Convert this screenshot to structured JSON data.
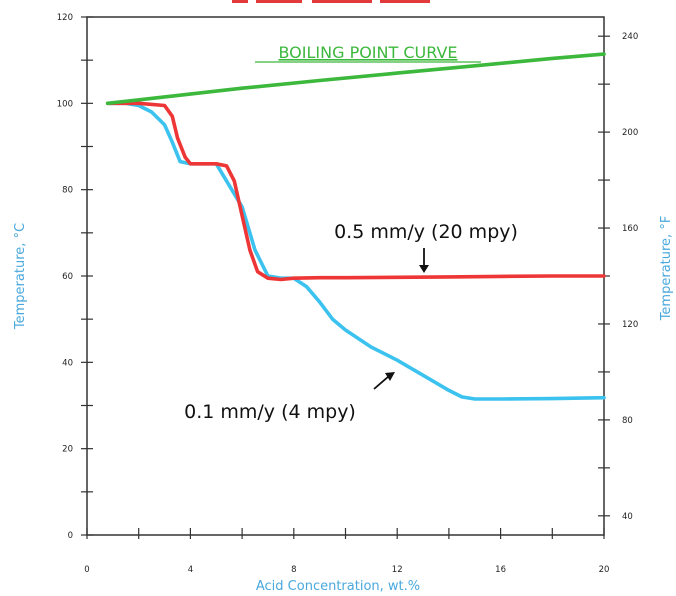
{
  "chart_data": {
    "type": "line",
    "title": "",
    "xlabel": "Acid Concentration, wt.%",
    "ylabel": "Temperature, °C",
    "ylabel_right": "Temperature, °F",
    "xlim": [
      0,
      20
    ],
    "ylim": [
      0,
      120
    ],
    "ylim_right": [
      32,
      248
    ],
    "x_ticks": [
      0,
      4,
      8,
      12,
      16,
      20
    ],
    "y_ticks": [
      0,
      20,
      40,
      60,
      80,
      100,
      120
    ],
    "y_ticks_right": [
      40,
      80,
      120,
      160,
      200,
      240
    ],
    "grid": false,
    "legend": "none",
    "colors": {
      "boiling": "#3cb83c",
      "red": "#ee3636",
      "blue": "#3cc2ee",
      "left_axis_label": "#4aa8dc",
      "right_axis_label": "#4aa8dc",
      "x_axis_label": "#4aa8dc",
      "title_partial": "#e23a3a"
    },
    "series": [
      {
        "key": "boiling",
        "x": [
          0.8,
          3,
          6,
          9,
          12,
          15,
          18,
          20
        ],
        "y": [
          100,
          101.5,
          103.5,
          105.3,
          107,
          108.7,
          110.4,
          111.4
        ]
      },
      {
        "key": "red",
        "x": [
          0.8,
          2,
          3,
          3.3,
          3.5,
          3.8,
          4,
          4.5,
          5,
          5.4,
          5.7,
          6,
          6.3,
          6.6,
          7,
          7.5,
          8,
          9,
          10,
          12,
          14,
          16,
          18,
          20
        ],
        "y": [
          100,
          100,
          99.5,
          97,
          92,
          87.5,
          86,
          86,
          86,
          85.5,
          82,
          74,
          66,
          61,
          59.5,
          59.2,
          59.5,
          59.6,
          59.6,
          59.7,
          59.8,
          59.9,
          60,
          60
        ]
      },
      {
        "key": "blue",
        "x": [
          0.8,
          1.5,
          2,
          2.5,
          3,
          3.3,
          3.6,
          4,
          5,
          6,
          6.5,
          7,
          7.5,
          8,
          8.5,
          9,
          9.5,
          10,
          11,
          12,
          13,
          14,
          14.5,
          15,
          16,
          18,
          20
        ],
        "y": [
          100,
          100,
          99.5,
          98,
          95,
          91,
          86.5,
          86,
          86,
          76,
          66,
          60,
          59.5,
          59.5,
          57.5,
          54,
          50,
          47.5,
          43.5,
          40.5,
          37,
          33.5,
          32,
          31.5,
          31.5,
          31.6,
          31.8
        ]
      }
    ],
    "annotations": {
      "boiling": {
        "text": "BOILING POINT CURVE"
      },
      "red": {
        "text": "0.5 mm/y (20 mpy)"
      },
      "blue": {
        "text": "0.1 mm/y (4 mpy)"
      }
    }
  }
}
